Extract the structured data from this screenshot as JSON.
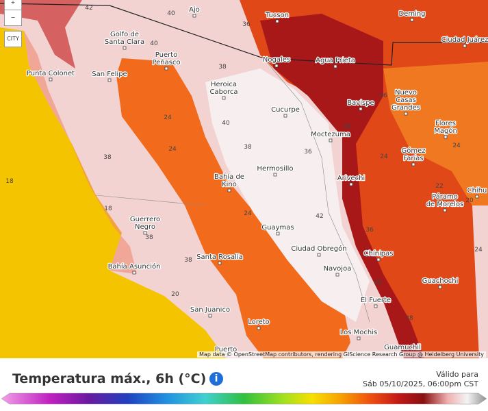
{
  "map": {
    "cities": [
      {
        "lines": [
          "Tucson"
        ]
      },
      {
        "lines": [
          "Deming"
        ]
      },
      {
        "lines": [
          "Ciudad Juárez"
        ]
      },
      {
        "lines": [
          "Ajo"
        ]
      },
      {
        "lines": [
          "Nogales"
        ]
      },
      {
        "lines": [
          "Agua Prieta"
        ]
      },
      {
        "lines": [
          "Golfo de",
          "Santa Clara"
        ]
      },
      {
        "lines": [
          "Puerto",
          "Peñasco"
        ]
      },
      {
        "lines": [
          "San Felipe"
        ]
      },
      {
        "lines": [
          "Punta Colonet"
        ]
      },
      {
        "lines": [
          "Heroica",
          "Caborca"
        ]
      },
      {
        "lines": [
          "Cucurpe"
        ]
      },
      {
        "lines": [
          "Bavispe"
        ]
      },
      {
        "lines": [
          "Nuevo",
          "Casas",
          "Grandes"
        ]
      },
      {
        "lines": [
          "Moctezuma"
        ]
      },
      {
        "lines": [
          "Flores",
          "Magón"
        ]
      },
      {
        "lines": [
          "Gómez",
          "Farías"
        ]
      },
      {
        "lines": [
          "Hermosillo"
        ]
      },
      {
        "lines": [
          "Bahía de",
          "Kino"
        ]
      },
      {
        "lines": [
          "Arivechi"
        ]
      },
      {
        "lines": [
          "Chihu"
        ]
      },
      {
        "lines": [
          "Guerrero",
          "Negro"
        ]
      },
      {
        "lines": [
          "Guaymas"
        ]
      },
      {
        "lines": [
          "Ciudad Obregón"
        ]
      },
      {
        "lines": [
          "Navojoa"
        ]
      },
      {
        "lines": [
          "Chínipas"
        ]
      },
      {
        "lines": [
          "Páramo",
          "de Morelos"
        ]
      },
      {
        "lines": [
          "Santa Rosalía"
        ]
      },
      {
        "lines": [
          "Bahía Asunción"
        ]
      },
      {
        "lines": [
          "San Juanico"
        ]
      },
      {
        "lines": [
          "El Fuerte"
        ]
      },
      {
        "lines": [
          "Guachochi"
        ]
      },
      {
        "lines": [
          "Loreto"
        ]
      },
      {
        "lines": [
          "Los Mochis"
        ]
      },
      {
        "lines": [
          "Guamuchil"
        ]
      },
      {
        "lines": [
          "Puerto"
        ]
      }
    ],
    "contour_labels": [
      42,
      40,
      40,
      38,
      36,
      40,
      38,
      24,
      24,
      38,
      18,
      18,
      36,
      36,
      26,
      24,
      22,
      20,
      24,
      24,
      42,
      36,
      38,
      38,
      20,
      40,
      38,
      24
    ],
    "city_toggle": "CITY",
    "attribution": "Map data © OpenStreetMap contributors, rendering GIScience Research Group @ Heidelberg University"
  },
  "legend": {
    "title": "Temperatura máx., 6h (°C)",
    "valid_label": "Válido para",
    "valid_time": "Sáb 05/10/2025, 06:00pm CST"
  }
}
